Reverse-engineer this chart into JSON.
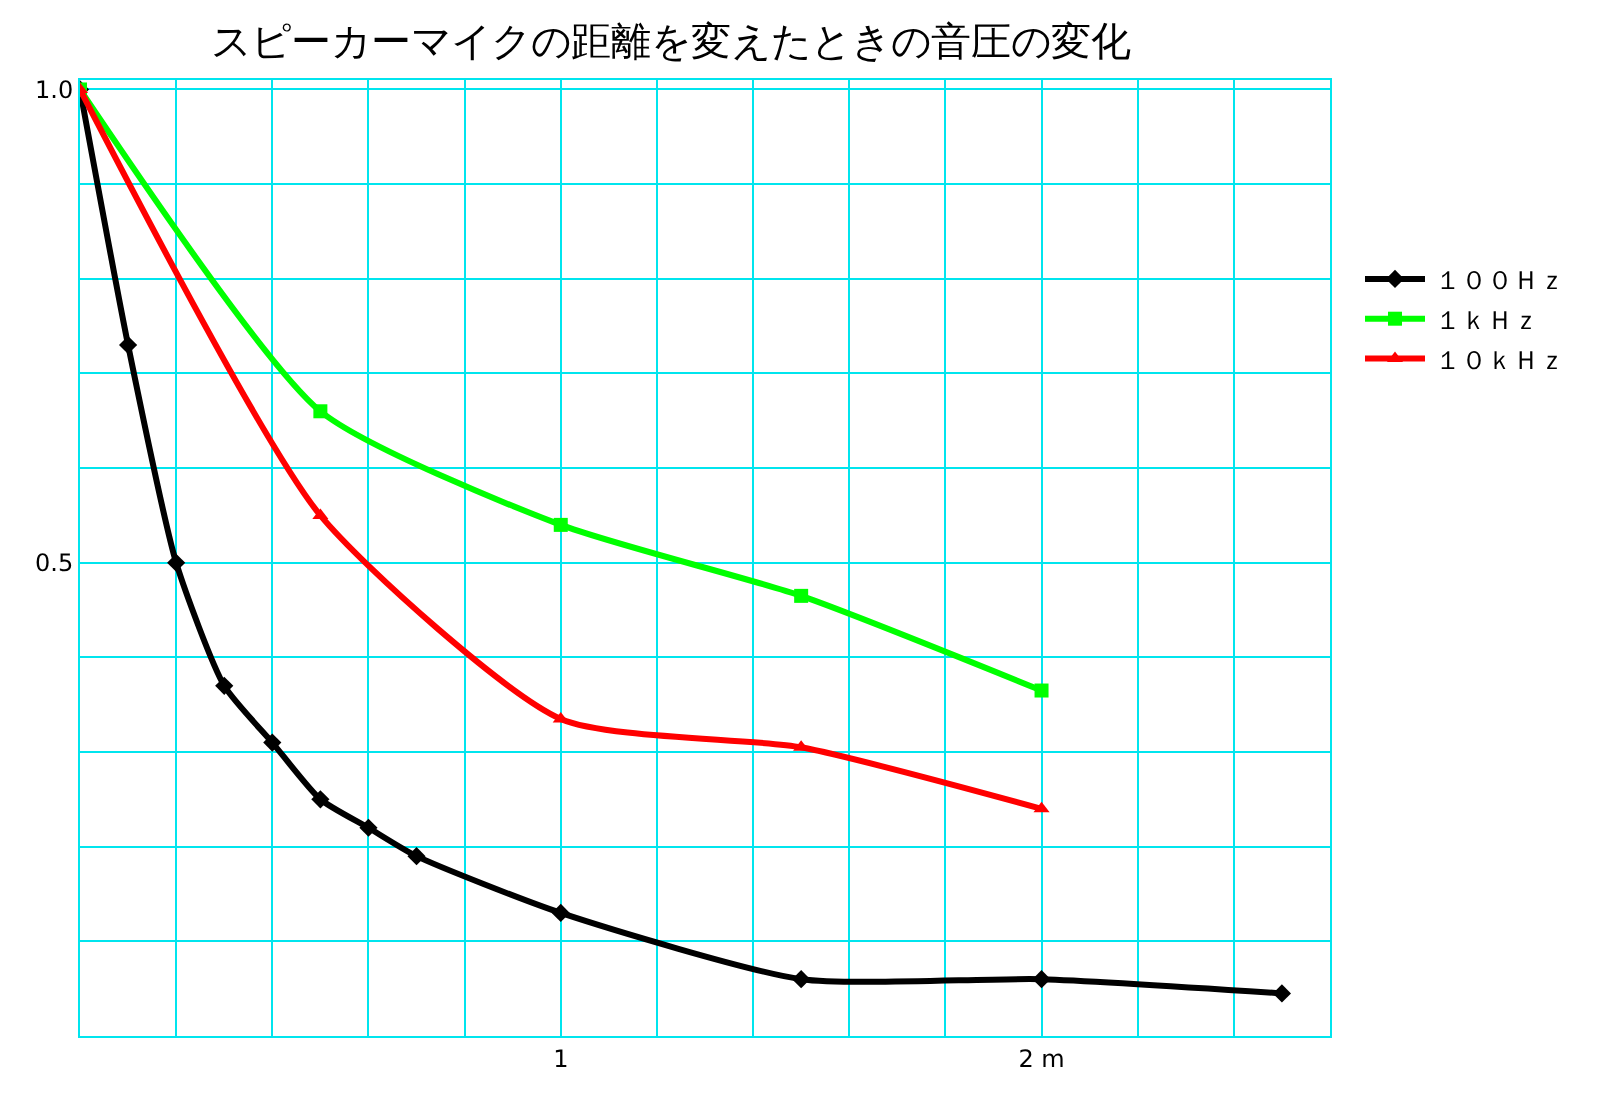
{
  "chart_data": {
    "type": "line",
    "title": "スピーカーマイクの距離を変えたときの音圧の変化",
    "xlim": [
      0,
      2.6
    ],
    "xticks": [
      {
        "value": 0,
        "label": null
      },
      {
        "value": 0.2,
        "label": null
      },
      {
        "value": 0.4,
        "label": null
      },
      {
        "value": 0.6,
        "label": null
      },
      {
        "value": 0.8,
        "label": null
      },
      {
        "value": 1,
        "label": "1"
      },
      {
        "value": 1.2,
        "label": null
      },
      {
        "value": 1.4,
        "label": null
      },
      {
        "value": 1.6,
        "label": null
      },
      {
        "value": 1.8,
        "label": null
      },
      {
        "value": 2,
        "label": "2 m"
      },
      {
        "value": 2.2,
        "label": null
      },
      {
        "value": 2.4,
        "label": null
      },
      {
        "value": 2.6,
        "label": null
      }
    ],
    "ylim": [
      0,
      1.01
    ],
    "yticks": [
      {
        "value": 0,
        "label": null
      },
      {
        "value": 0.1,
        "label": null
      },
      {
        "value": 0.2,
        "label": null
      },
      {
        "value": 0.3,
        "label": null
      },
      {
        "value": 0.4,
        "label": null
      },
      {
        "value": 0.5,
        "label": "0.5"
      },
      {
        "value": 0.6,
        "label": null
      },
      {
        "value": 0.7,
        "label": null
      },
      {
        "value": 0.8,
        "label": null
      },
      {
        "value": 0.9,
        "label": null
      },
      {
        "value": 1.0,
        "label": "1.0"
      }
    ],
    "grid": true,
    "legend": "right",
    "series": [
      {
        "name": "１００Ｈｚ",
        "color": "#000000",
        "marker": "diamond",
        "x": [
          0,
          0.1,
          0.2,
          0.3,
          0.4,
          0.5,
          0.6,
          0.7,
          1.0,
          1.5,
          2.0,
          2.5
        ],
        "values": [
          1.0,
          0.73,
          0.5,
          0.37,
          0.31,
          0.25,
          0.22,
          0.19,
          0.13,
          0.06,
          0.06,
          0.045
        ]
      },
      {
        "name": "１ｋＨｚ",
        "color": "#00ff00",
        "marker": "square",
        "x": [
          0,
          0.5,
          1.0,
          1.5,
          2.0
        ],
        "values": [
          1.0,
          0.66,
          0.54,
          0.465,
          0.365
        ]
      },
      {
        "name": "１０ｋＨｚ",
        "color": "#ff0000",
        "marker": "triangle",
        "x": [
          0,
          0.5,
          1.0,
          1.5,
          2.0
        ],
        "values": [
          1.0,
          0.55,
          0.335,
          0.305,
          0.24
        ]
      }
    ]
  }
}
